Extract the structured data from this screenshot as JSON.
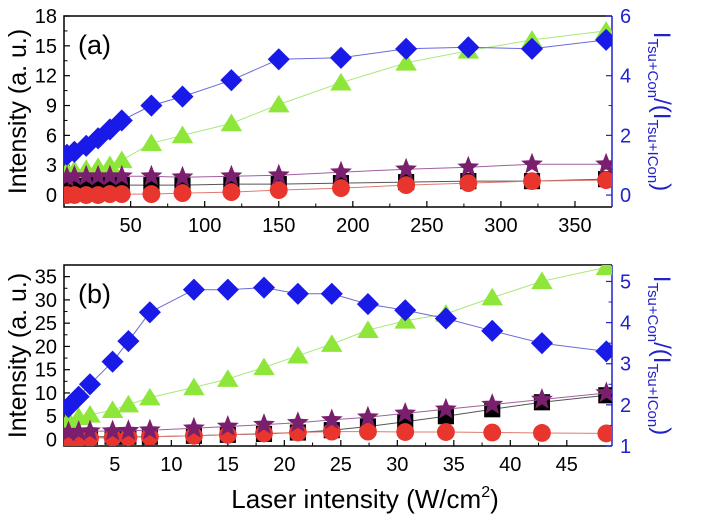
{
  "figure_xlabel": "Laser intensity (W/cm",
  "figure_xlabel_sup": "2",
  "figure_xlabel_end": ")",
  "chart_data": [
    {
      "type": "line",
      "panel_label": "(a)",
      "ylabel": "Intensity (a. u.)",
      "ylabel_right": "I_Tsu+Con/(I_Tsu+I_Con)",
      "xlim": [
        5,
        375
      ],
      "xticks": [
        50,
        100,
        150,
        200,
        250,
        300,
        350
      ],
      "ylim": [
        -1.2,
        18
      ],
      "yticks": [
        0,
        3,
        6,
        9,
        12,
        15,
        18
      ],
      "y2lim": [
        -0.4,
        6
      ],
      "y2ticks": [
        0,
        2,
        4,
        6
      ],
      "grid": false,
      "series": [
        {
          "marker": "square",
          "color": "#000000",
          "line_color": "#555555",
          "axis": "left",
          "x": [
            7,
            12,
            20,
            28,
            36,
            44,
            64,
            85,
            118,
            150,
            192,
            236,
            278,
            321,
            371
          ],
          "y": [
            0.9,
            1.0,
            1.0,
            1.0,
            1.0,
            1.0,
            1.0,
            1.0,
            1.1,
            1.1,
            1.2,
            1.3,
            1.4,
            1.4,
            1.6
          ]
        },
        {
          "marker": "circle",
          "color": "#e8352e",
          "line_color": "#e07a70",
          "axis": "left",
          "x": [
            7,
            12,
            20,
            28,
            36,
            44,
            64,
            85,
            118,
            150,
            192,
            236,
            278,
            321,
            371
          ],
          "y": [
            0.0,
            0.0,
            0.0,
            0.0,
            0.1,
            0.1,
            0.1,
            0.2,
            0.3,
            0.5,
            0.7,
            1.0,
            1.2,
            1.4,
            1.5
          ]
        },
        {
          "marker": "triangle",
          "color": "#8ee63a",
          "line_color": "#a8e878",
          "axis": "left",
          "x": [
            7,
            12,
            20,
            28,
            36,
            44,
            64,
            85,
            118,
            150,
            192,
            236,
            278,
            321,
            371
          ],
          "y": [
            2.4,
            2.5,
            2.6,
            2.8,
            3.0,
            3.5,
            5.2,
            6.0,
            7.2,
            9.1,
            11.3,
            13.3,
            14.5,
            15.6,
            16.5
          ]
        },
        {
          "marker": "star",
          "color": "#7a1f6e",
          "line_color": "#a060a0",
          "axis": "left",
          "x": [
            7,
            12,
            20,
            28,
            36,
            44,
            64,
            85,
            118,
            150,
            192,
            236,
            278,
            321,
            371
          ],
          "y": [
            1.8,
            1.9,
            1.9,
            1.9,
            1.9,
            1.9,
            1.9,
            1.8,
            1.9,
            2.0,
            2.3,
            2.6,
            2.8,
            3.1,
            3.1
          ]
        },
        {
          "marker": "diamond",
          "color": "#1a1ae8",
          "line_color": "#6a6ad8",
          "axis": "right",
          "x": [
            7,
            12,
            20,
            28,
            36,
            44,
            64,
            85,
            118,
            150,
            192,
            236,
            278,
            321,
            371
          ],
          "y": [
            1.35,
            1.45,
            1.65,
            1.9,
            2.2,
            2.5,
            3.0,
            3.3,
            3.85,
            4.55,
            4.6,
            4.9,
            4.95,
            4.9,
            5.2
          ]
        }
      ]
    },
    {
      "type": "line",
      "panel_label": "(b)",
      "ylabel": "Intensity (a. u.)",
      "ylabel_right": "I_Tsu+Con/(I_Tsu+I_Con)",
      "xlim": [
        0.5,
        49
      ],
      "xticks": [
        5,
        10,
        15,
        20,
        25,
        30,
        35,
        40,
        45
      ],
      "ylim": [
        -1.4,
        37.5
      ],
      "yticks": [
        0,
        5,
        10,
        15,
        20,
        25,
        30,
        35
      ],
      "y2lim": [
        1,
        5.4
      ],
      "y2ticks": [
        1,
        2,
        3,
        4,
        5
      ],
      "grid": false,
      "series": [
        {
          "marker": "square",
          "color": "#000000",
          "line_color": "#555555",
          "axis": "left",
          "x": [
            0.9,
            1.8,
            2.8,
            4.8,
            6.2,
            8.1,
            12.0,
            15.0,
            18.2,
            21.2,
            24.2,
            27.4,
            30.7,
            34.3,
            38.4,
            42.8,
            48.5
          ],
          "y": [
            0.6,
            0.6,
            0.6,
            0.6,
            0.6,
            0.6,
            0.8,
            1.0,
            1.2,
            1.5,
            2.0,
            2.8,
            3.8,
            5.0,
            6.5,
            8.0,
            9.5
          ]
        },
        {
          "marker": "circle",
          "color": "#e8352e",
          "line_color": "#e07a70",
          "axis": "left",
          "x": [
            0.9,
            1.8,
            2.8,
            4.8,
            6.2,
            8.1,
            12.0,
            15.0,
            18.2,
            21.2,
            24.2,
            27.4,
            30.7,
            34.3,
            38.4,
            42.8,
            48.5
          ],
          "y": [
            0.2,
            0.2,
            0.3,
            0.4,
            0.5,
            0.6,
            0.8,
            1.0,
            1.3,
            1.5,
            1.7,
            1.7,
            1.6,
            1.6,
            1.5,
            1.4,
            1.3
          ]
        },
        {
          "marker": "triangle",
          "color": "#8ee63a",
          "line_color": "#a8e878",
          "axis": "left",
          "x": [
            0.9,
            1.8,
            2.8,
            4.8,
            6.2,
            8.1,
            12.0,
            15.0,
            18.2,
            21.2,
            24.2,
            27.4,
            30.7,
            34.3,
            38.4,
            42.8,
            48.5
          ],
          "y": [
            4.2,
            4.8,
            5.3,
            6.3,
            7.5,
            9.0,
            11.2,
            13.0,
            15.5,
            18.0,
            20.5,
            23.5,
            25.5,
            27.0,
            30.5,
            34.0,
            37.0
          ]
        },
        {
          "marker": "star",
          "color": "#7a1f6e",
          "line_color": "#a060a0",
          "axis": "left",
          "x": [
            0.9,
            1.8,
            2.8,
            4.8,
            6.2,
            8.1,
            12.0,
            15.0,
            18.2,
            21.2,
            24.2,
            27.4,
            30.7,
            34.3,
            38.4,
            42.8,
            48.5
          ],
          "y": [
            1.6,
            1.7,
            1.8,
            1.8,
            1.9,
            2.0,
            2.4,
            2.8,
            3.2,
            3.6,
            4.2,
            4.8,
            5.6,
            6.5,
            7.5,
            8.6,
            10.0
          ]
        },
        {
          "marker": "diamond",
          "color": "#1a1ae8",
          "line_color": "#6a6ad8",
          "axis": "right",
          "x": [
            0.9,
            1.8,
            2.8,
            4.8,
            6.2,
            8.1,
            12.0,
            15.0,
            18.2,
            21.2,
            24.2,
            27.4,
            30.7,
            34.3,
            38.4,
            42.8,
            48.5
          ],
          "y": [
            1.95,
            2.2,
            2.5,
            3.05,
            3.55,
            4.25,
            4.8,
            4.8,
            4.85,
            4.7,
            4.7,
            4.45,
            4.3,
            4.1,
            3.8,
            3.5,
            3.3
          ]
        }
      ]
    }
  ]
}
